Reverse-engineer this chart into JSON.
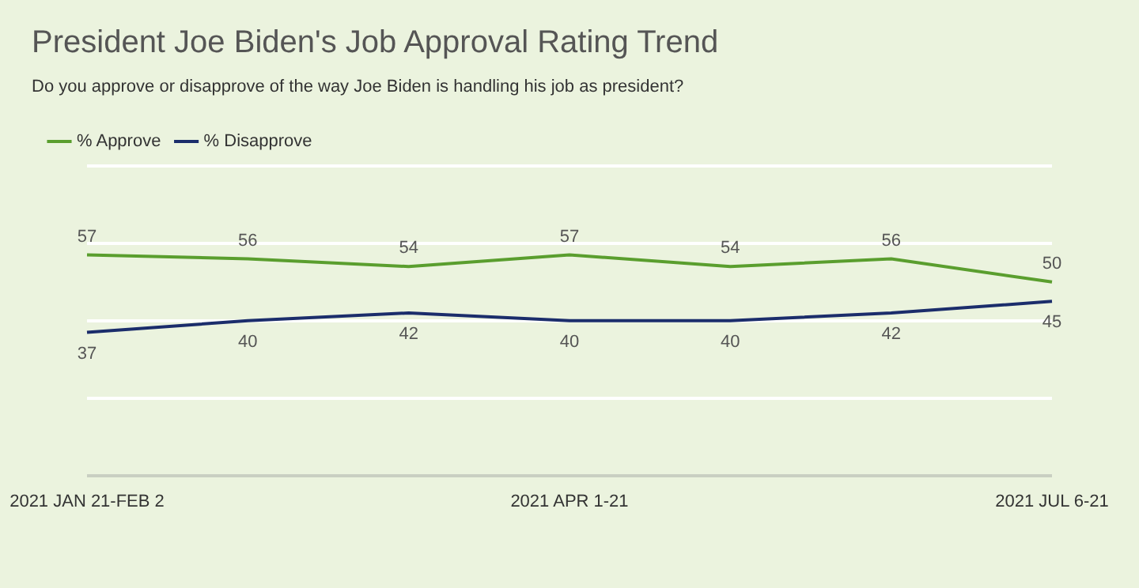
{
  "chart_data": {
    "type": "line",
    "title": "President Joe Biden's Job Approval Rating Trend",
    "subtitle": "Do you approve or disapprove of the way Joe Biden is handling his job as president?",
    "categories": [
      "2021 JAN 21-FEB 2",
      null,
      null,
      "2021 APR 1-21",
      null,
      null,
      "2021 JUL 6-21"
    ],
    "series": [
      {
        "name": "% Approve",
        "color": "#5a9e2e",
        "values": [
          57,
          56,
          54,
          57,
          54,
          56,
          50
        ]
      },
      {
        "name": "% Disapprove",
        "color": "#1b2d6b",
        "values": [
          37,
          40,
          42,
          40,
          40,
          42,
          45
        ]
      }
    ],
    "ylim": [
      0,
      80
    ],
    "yticks": [
      {
        "value": 0,
        "label": null
      },
      {
        "value": 20,
        "label": null
      },
      {
        "value": 40,
        "label": null
      },
      {
        "value": 60,
        "label": null
      },
      {
        "value": 80,
        "label": null
      }
    ],
    "tick_labels": "x",
    "grid": "y",
    "legend": "top left",
    "data_labels": true,
    "marker": "none",
    "line_style": "solid"
  }
}
